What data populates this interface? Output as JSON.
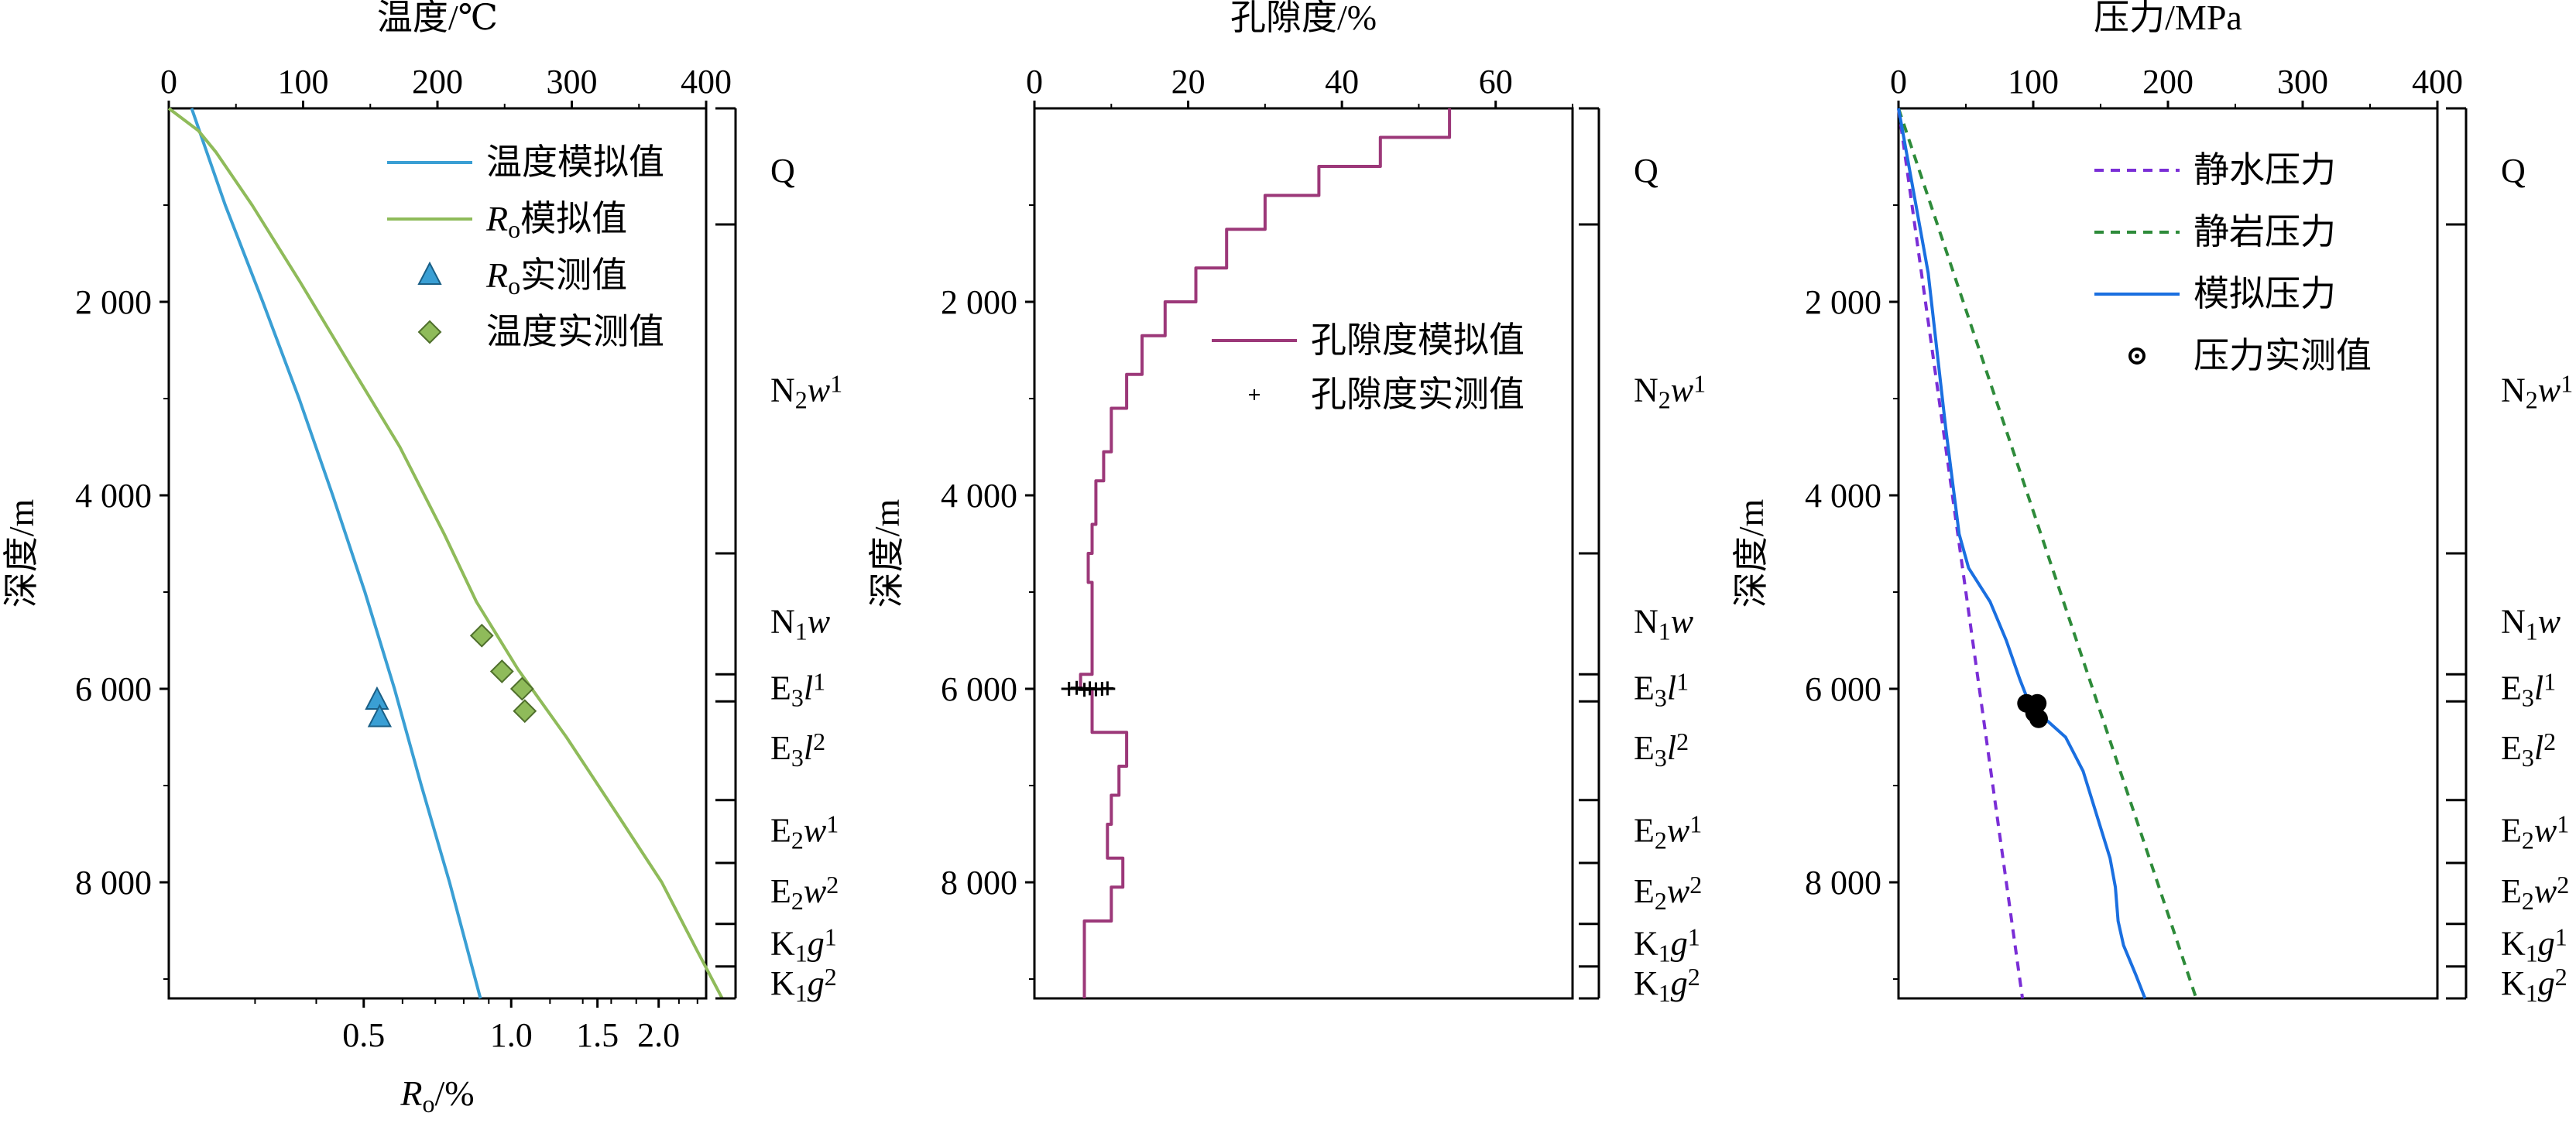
{
  "chart_data": [
    {
      "type": "line",
      "top_axis": {
        "label": "温度/℃",
        "ticks": [
          "0",
          "100",
          "200",
          "300",
          "400"
        ],
        "range": [
          0,
          400
        ]
      },
      "bottom_axis": {
        "label_main": "R",
        "label_sub": "o",
        "label_tail": "/%",
        "scale": "log",
        "ticks": [
          "0.5",
          "1.0",
          "1.5",
          "2.0"
        ],
        "tick_values": [
          0.5,
          1.0,
          1.5,
          2.0
        ],
        "range": [
          0.2,
          2.5
        ]
      },
      "y_axis": {
        "label": "深度/m",
        "range": [
          0,
          9200
        ],
        "ticks": [
          "2 000",
          "4 000",
          "6 000",
          "8 000"
        ],
        "tick_values": [
          2000,
          4000,
          6000,
          8000
        ],
        "inverted": true
      },
      "series": [
        {
          "name": "温度模拟值",
          "color": "#3a9fd4",
          "points": [
            [
              17,
              0
            ],
            [
              27,
              400
            ],
            [
              42,
              1000
            ],
            [
              70,
              2000
            ],
            [
              97,
              3000
            ],
            [
              122,
              4000
            ],
            [
              146,
              5000
            ],
            [
              168,
              6000
            ],
            [
              188,
              7000
            ],
            [
              209,
              8000
            ],
            [
              232,
              9200
            ]
          ]
        },
        {
          "name_main": "R",
          "name_sub": "o",
          "name_tail": "模拟值",
          "color": "#8fbb5a",
          "points": [
            [
              0,
              0
            ],
            [
              22,
              230
            ],
            [
              35,
              450
            ],
            [
              62,
              1000
            ],
            [
              98,
              1800
            ],
            [
              137,
              2700
            ],
            [
              172,
              3500
            ],
            [
              205,
              4400
            ],
            [
              229,
              5100
            ],
            [
              260,
              5800
            ],
            [
              296,
              6500
            ],
            [
              334,
              7300
            ],
            [
              367,
              8000
            ],
            [
              393,
              8700
            ],
            [
              412,
              9200
            ]
          ]
        }
      ],
      "measured": [
        {
          "name_main": "R",
          "name_sub": "o",
          "name_tail": "实测值",
          "marker": "triangle",
          "color": "#3a9fd4",
          "points": [
            [
              155,
              6120
            ],
            [
              157,
              6300
            ]
          ]
        },
        {
          "name": "温度实测值",
          "marker": "diamond",
          "color": "#8fbb5a",
          "points": [
            [
              233,
              5450
            ],
            [
              248,
              5820
            ],
            [
              263,
              6000
            ],
            [
              265,
              6230
            ]
          ]
        }
      ]
    },
    {
      "type": "line",
      "top_axis": {
        "label": "孔隙度/%",
        "ticks": [
          "0",
          "20",
          "40",
          "60"
        ],
        "range": [
          0,
          70
        ]
      },
      "y_axis": {
        "label": "深度/m",
        "range": [
          0,
          9200
        ],
        "ticks": [
          "2 000",
          "4 000",
          "6 000",
          "8 000"
        ],
        "tick_values": [
          2000,
          4000,
          6000,
          8000
        ],
        "inverted": true
      },
      "series": [
        {
          "name": "孔隙度模拟值",
          "color": "#9c3879",
          "step": true,
          "points": [
            [
              54,
              0
            ],
            [
              54,
              300
            ],
            [
              45,
              300
            ],
            [
              45,
              600
            ],
            [
              37,
              600
            ],
            [
              37,
              900
            ],
            [
              30,
              900
            ],
            [
              30,
              1250
            ],
            [
              25,
              1250
            ],
            [
              25,
              1650
            ],
            [
              21,
              1650
            ],
            [
              21,
              2000
            ],
            [
              17,
              2000
            ],
            [
              17,
              2350
            ],
            [
              14,
              2350
            ],
            [
              14,
              2750
            ],
            [
              12,
              2750
            ],
            [
              12,
              3100
            ],
            [
              10,
              3100
            ],
            [
              10,
              3550
            ],
            [
              9,
              3550
            ],
            [
              9,
              3850
            ],
            [
              8,
              3850
            ],
            [
              8,
              4300
            ],
            [
              7.5,
              4300
            ],
            [
              7.5,
              4600
            ],
            [
              7,
              4600
            ],
            [
              7,
              4900
            ],
            [
              7.5,
              4900
            ],
            [
              7.5,
              5850
            ],
            [
              6,
              5850
            ],
            [
              6,
              6000
            ],
            [
              7.5,
              6000
            ],
            [
              7.5,
              6450
            ],
            [
              12,
              6450
            ],
            [
              12,
              6800
            ],
            [
              11,
              6800
            ],
            [
              11,
              7100
            ],
            [
              10,
              7100
            ],
            [
              10,
              7400
            ],
            [
              9.5,
              7400
            ],
            [
              9.5,
              7750
            ],
            [
              11.5,
              7750
            ],
            [
              11.5,
              8050
            ],
            [
              10,
              8050
            ],
            [
              10,
              8400
            ],
            [
              6.5,
              8400
            ],
            [
              6.5,
              9200
            ]
          ]
        }
      ],
      "measured": [
        {
          "name": "孔隙度实测值",
          "marker": "plus",
          "color": "#000000",
          "points": [
            [
              4.5,
              6000
            ],
            [
              5.5,
              5990
            ],
            [
              6.5,
              6010
            ],
            [
              7.2,
              5995
            ],
            [
              8,
              6005
            ],
            [
              8.8,
              6000
            ],
            [
              9.5,
              5995
            ]
          ]
        }
      ]
    },
    {
      "type": "line",
      "top_axis": {
        "label": "压力/MPa",
        "ticks": [
          "0",
          "100",
          "200",
          "300",
          "400"
        ],
        "range": [
          0,
          400
        ]
      },
      "y_axis": {
        "label": "深度/m",
        "range": [
          0,
          9200
        ],
        "ticks": [
          "2 000",
          "4 000",
          "6 000",
          "8 000"
        ],
        "tick_values": [
          2000,
          4000,
          6000,
          8000
        ],
        "inverted": true
      },
      "series": [
        {
          "name": "静水压力",
          "color": "#7a2ed6",
          "dash": "12,9",
          "points": [
            [
              0,
              0
            ],
            [
              92,
              9200
            ]
          ]
        },
        {
          "name": "静岩压力",
          "color": "#2e8b3a",
          "dash": "12,9",
          "points": [
            [
              0,
              0
            ],
            [
              221,
              9200
            ]
          ]
        },
        {
          "name": "模拟压力",
          "color": "#1a6fe0",
          "points": [
            [
              0,
              0
            ],
            [
              22,
              1700
            ],
            [
              35,
              3300
            ],
            [
              45,
              4400
            ],
            [
              52,
              4750
            ],
            [
              68,
              5100
            ],
            [
              80,
              5500
            ],
            [
              90,
              5900
            ],
            [
              97,
              6150
            ],
            [
              108,
              6300
            ],
            [
              124,
              6500
            ],
            [
              137,
              6850
            ],
            [
              147,
              7300
            ],
            [
              157,
              7750
            ],
            [
              161,
              8050
            ],
            [
              163,
              8400
            ],
            [
              167,
              8650
            ],
            [
              176,
              8950
            ],
            [
              183,
              9200
            ]
          ]
        }
      ],
      "measured": [
        {
          "name": "压力实测值",
          "marker": "circle",
          "color": "#000000",
          "points": [
            [
              95,
              6150
            ],
            [
              103,
              6150
            ],
            [
              101,
              6250
            ],
            [
              104,
              6310
            ]
          ]
        }
      ]
    }
  ],
  "strata": [
    {
      "main": "Q",
      "sub": "",
      "sup": "",
      "italic": "",
      "depth_top": 0,
      "depth_bottom": 1200,
      "label_depth": 630
    },
    {
      "main": "N",
      "sub": "2",
      "sup": "1",
      "italic": "w",
      "depth_top": 1200,
      "depth_bottom": 4600,
      "label_depth": 2900
    },
    {
      "main": "N",
      "sub": "1",
      "sup": "",
      "italic": "w",
      "depth_top": 4600,
      "depth_bottom": 5850,
      "label_depth": 5290
    },
    {
      "main": "E",
      "sub": "3",
      "sup": "1",
      "italic": "l",
      "depth_top": 5850,
      "depth_bottom": 6130,
      "label_depth": 5980
    },
    {
      "main": "E",
      "sub": "3",
      "sup": "2",
      "italic": "l",
      "depth_top": 6130,
      "depth_bottom": 7150,
      "label_depth": 6600
    },
    {
      "main": "E",
      "sub": "2",
      "sup": "1",
      "italic": "w",
      "depth_top": 7150,
      "depth_bottom": 7800,
      "label_depth": 7450
    },
    {
      "main": "E",
      "sub": "2",
      "sup": "2",
      "italic": "w",
      "depth_top": 7800,
      "depth_bottom": 8430,
      "label_depth": 8080
    },
    {
      "main": "K",
      "sub": "1",
      "sup": "1",
      "italic": "g",
      "depth_top": 8430,
      "depth_bottom": 8870,
      "label_depth": 8620
    },
    {
      "main": "K",
      "sub": "1",
      "sup": "2",
      "italic": "g",
      "depth_top": 8870,
      "depth_bottom": 9200,
      "label_depth": 9030
    }
  ]
}
